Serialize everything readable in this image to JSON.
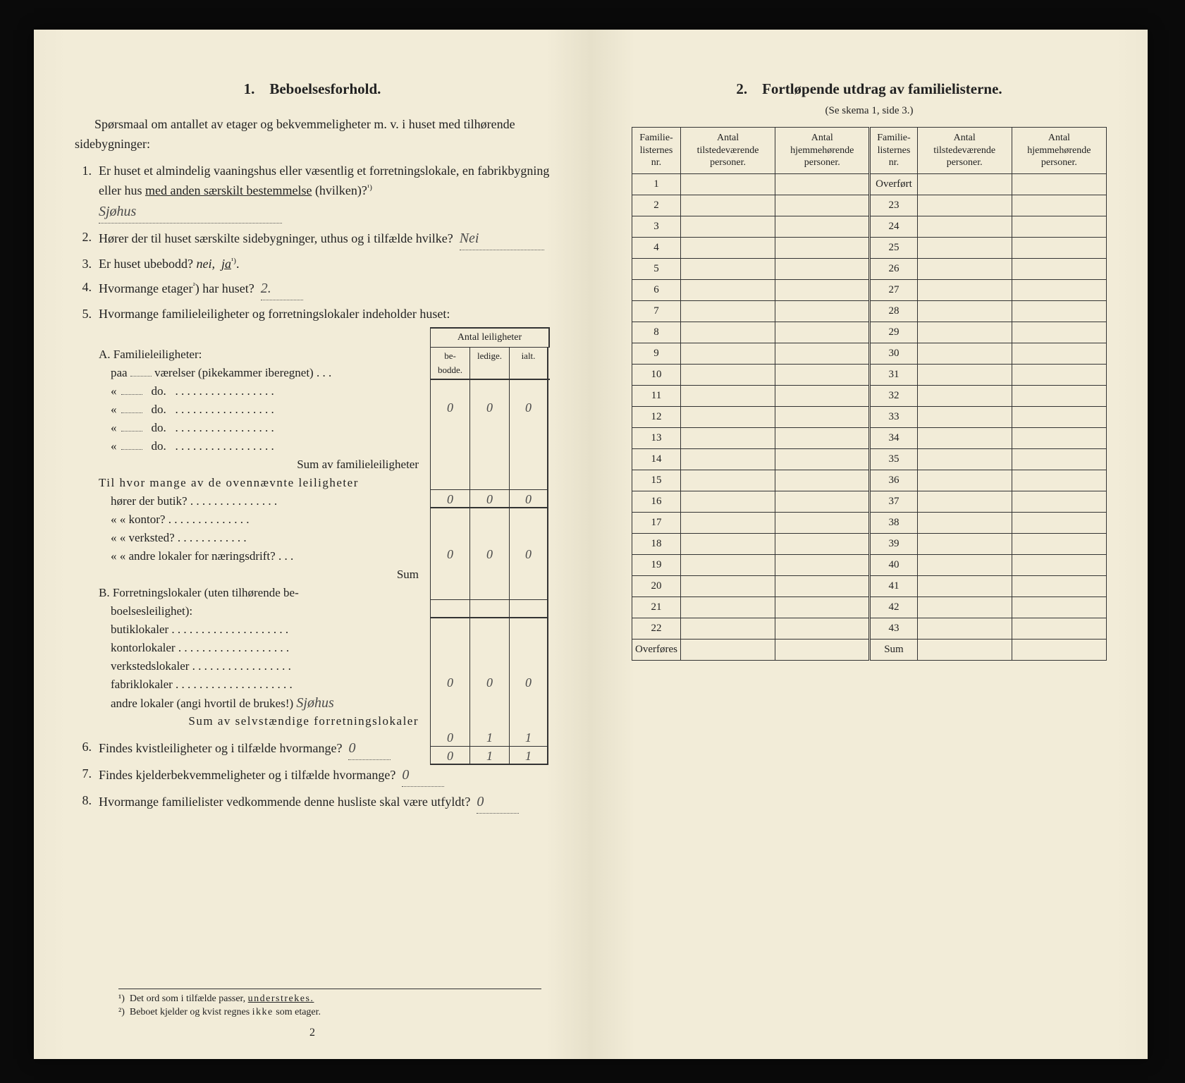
{
  "left": {
    "sectionNumber": "1.",
    "sectionTitle": "Beboelsesforhold.",
    "intro": "Spørsmaal om antallet av etager og bekvemmeligheter m. v. i huset med tilhørende sidebygninger:",
    "q1_pre": "Er huset et almindelig vaaningshus eller væsentlig et forretningslokale, en fabrikbygning eller hus ",
    "q1_mid": "med anden særskilt bestemmelse",
    "q1_post": " (hvilken)?",
    "q1_sup": "1",
    "q1_ans": "Sjøhus",
    "q2_text": "Hører der til huset særskilte sidebygninger, uthus og i tilfælde hvilke?",
    "q2_ans": "Nei",
    "q3_text": "Er huset ubebodd?  ",
    "q3_nei": "nei,",
    "q3_ja": "ja",
    "q3_sup": "1",
    "q4_text": "Hvormange etager",
    "q4_sup": "2",
    "q4_post": ") har huset?",
    "q4_ans": "2.",
    "q5_text": "Hvormange familieleiligheter og forretningslokaler indeholder huset:",
    "leil_header_top": "Antal leiligheter",
    "leil_header_cols": [
      "be-\nbodde.",
      "ledige.",
      "ialt."
    ],
    "A_title": "A. Familieleiligheter:",
    "A_rows": [
      {
        "label_pre": "paa",
        "label_mid": " ",
        "label_post": "værelser (pikekammer iberegnet)"
      },
      {
        "label_pre": "«",
        "label_mid": " ",
        "label_post": "do."
      },
      {
        "label_pre": "«",
        "label_mid": " ",
        "label_post": "do."
      },
      {
        "label_pre": "«",
        "label_mid": " ",
        "label_post": "do."
      },
      {
        "label_pre": "«",
        "label_mid": " ",
        "label_post": "do."
      }
    ],
    "A_cells": [
      [
        "0",
        "0",
        "0"
      ],
      [
        "",
        "",
        ""
      ],
      [
        "",
        "",
        ""
      ],
      [
        "",
        "",
        ""
      ],
      [
        "",
        "",
        ""
      ]
    ],
    "A_sum_label": "Sum av familieleiligheter",
    "A_sum": [
      "0",
      "0",
      "0"
    ],
    "Til_title": "Til hvor mange av de ovennævnte leiligheter",
    "Til_rows": [
      "hører der butik?",
      "«     «   kontor?",
      "«     «   verksted?",
      "«     «   andre lokaler for næringsdrift?"
    ],
    "Til_cells": [
      [
        "",
        "",
        ""
      ],
      [
        "0",
        "0",
        "0"
      ],
      [
        "",
        "",
        ""
      ],
      [
        "",
        "",
        ""
      ]
    ],
    "Til_sum_label": "Sum",
    "B_title": "B. Forretningslokaler (uten tilhørende beboelsesleilighet):",
    "B_rows": [
      "butiklokaler",
      "kontorlokaler",
      "verkstedslokaler",
      "fabriklokaler"
    ],
    "B_cells": [
      [
        "",
        "",
        ""
      ],
      [
        "0",
        "0",
        "0"
      ],
      [
        "",
        "",
        ""
      ],
      [
        "",
        "",
        ""
      ]
    ],
    "B_andre_label": "andre lokaler (angi hvortil de brukes!)",
    "B_andre_ans": "Sjøhus",
    "B_andre_cells": [
      "0",
      "1",
      "1"
    ],
    "B_sum_label": "Sum av selvstændige forretningslokaler",
    "B_sum": [
      "0",
      "1",
      "1"
    ],
    "q6_text": "Findes kvistleiligheter og i tilfælde hvormange?",
    "q6_ans": "0",
    "q7_text": "Findes kjelderbekvemmeligheter og i tilfælde hvormange?",
    "q7_ans": "0",
    "q8_text": "Hvormange familielister vedkommende denne husliste skal være utfyldt?",
    "q8_ans": "0",
    "fn1_mark": "¹)",
    "fn1": "Det ord som i tilfælde passer, ",
    "fn1_u": "understrekes.",
    "fn2_mark": "²)",
    "fn2_pre": "Beboet kjelder og kvist regnes ",
    "fn2_ikke": "ikke",
    "fn2_post": " som etager.",
    "page_num": "2"
  },
  "right": {
    "sectionNumber": "2.",
    "sectionTitle": "Fortløpende utdrag av familielisterne.",
    "subtitle": "(Se skema 1, side 3.)",
    "cols": [
      "Familie-\nlisternes\nnr.",
      "Antal\ntilstedeværende\npersoner.",
      "Antal\nhjemmehørende\npersoner.",
      "Familie-\nlisternes\nnr.",
      "Antal\ntilstedeværende\npersoner.",
      "Antal\nhjemmehørende\npersoner."
    ],
    "left_nrs": [
      "1",
      "2",
      "3",
      "4",
      "5",
      "6",
      "7",
      "8",
      "9",
      "10",
      "11",
      "12",
      "13",
      "14",
      "15",
      "16",
      "17",
      "18",
      "19",
      "20",
      "21",
      "22",
      "Overføres"
    ],
    "right_nrs": [
      "Overført",
      "23",
      "24",
      "25",
      "26",
      "27",
      "28",
      "29",
      "30",
      "31",
      "32",
      "33",
      "34",
      "35",
      "36",
      "37",
      "38",
      "39",
      "40",
      "41",
      "42",
      "43",
      "Sum"
    ]
  },
  "colors": {
    "paper": "#f2ecd8",
    "ink": "#222222",
    "handwriting": "#4a4a4a",
    "rule": "#333333",
    "background": "#0a0a0a"
  }
}
